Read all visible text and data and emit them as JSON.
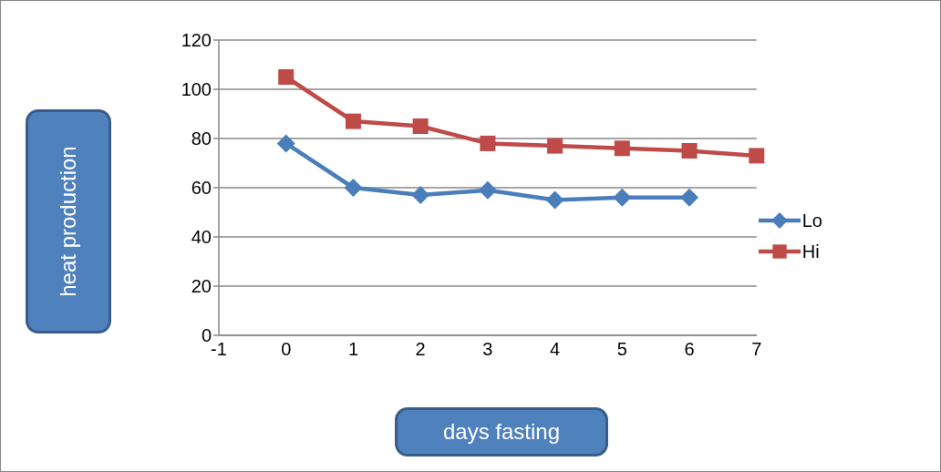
{
  "chart_data": {
    "type": "line",
    "xlabel": "days fasting",
    "ylabel": "heat production",
    "categories": [
      "-1",
      "0",
      "1",
      "2",
      "3",
      "4",
      "5",
      "6",
      "7"
    ],
    "series": [
      {
        "name": "Lo",
        "color": "#4a7ebb",
        "marker": "diamond",
        "values": [
          null,
          78,
          60,
          57,
          59,
          55,
          56,
          56,
          null
        ]
      },
      {
        "name": "Hi",
        "color": "#be4b48",
        "marker": "square",
        "values": [
          null,
          105,
          87,
          85,
          78,
          77,
          76,
          75,
          73
        ]
      }
    ],
    "ylim": [
      0,
      120
    ],
    "yticks": [
      0,
      20,
      40,
      60,
      80,
      100,
      120
    ],
    "grid": "y",
    "legend": "right",
    "line_style": "solid"
  }
}
